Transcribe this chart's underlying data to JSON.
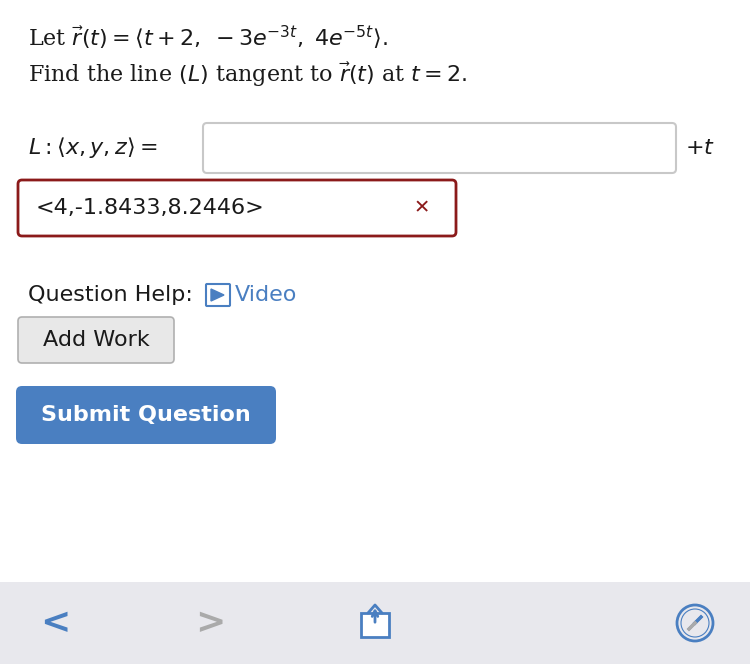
{
  "main_bg": "#ffffff",
  "bottom_bar_color": "#e8e8ed",
  "text_color": "#1a1a1a",
  "video_color": "#4a7fc1",
  "x_color": "#8b1a1a",
  "nav_icon_color": "#4a7fc1",
  "nav_gray_color": "#aaaaaa",
  "input_box_color": "#c8c8c8",
  "answer_box_border_color": "#8b1a1a",
  "submit_btn_color": "#4a7fc1",
  "add_work_btn_color": "#e8e8e8",
  "add_work_btn_border": "#b0b0b0",
  "line1_plain": "Let ",
  "line1_math": "$\\vec{r}(t) = \\langle t + 2,\\; -3e^{-3t},\\; 4e^{-5t}\\rangle.$",
  "line2_plain": "Find the line ",
  "line2_math": "$(L)$",
  "line2_rest": " tangent to ",
  "line2_math2": "$\\vec{r}(t)$",
  "line2_end": " at ",
  "line2_math3": "$t = 2.$",
  "label_L_math": "$L:\\langle x, y, z\\rangle =$",
  "plus_t": "$+t$",
  "answer_text": "<4,-1.8433,8.2446>",
  "question_help_label": "Question Help:",
  "video_text": "Video",
  "add_work_text": "Add Work",
  "submit_text": "Submit Question",
  "main_fontsize": 16,
  "small_fontsize": 14
}
